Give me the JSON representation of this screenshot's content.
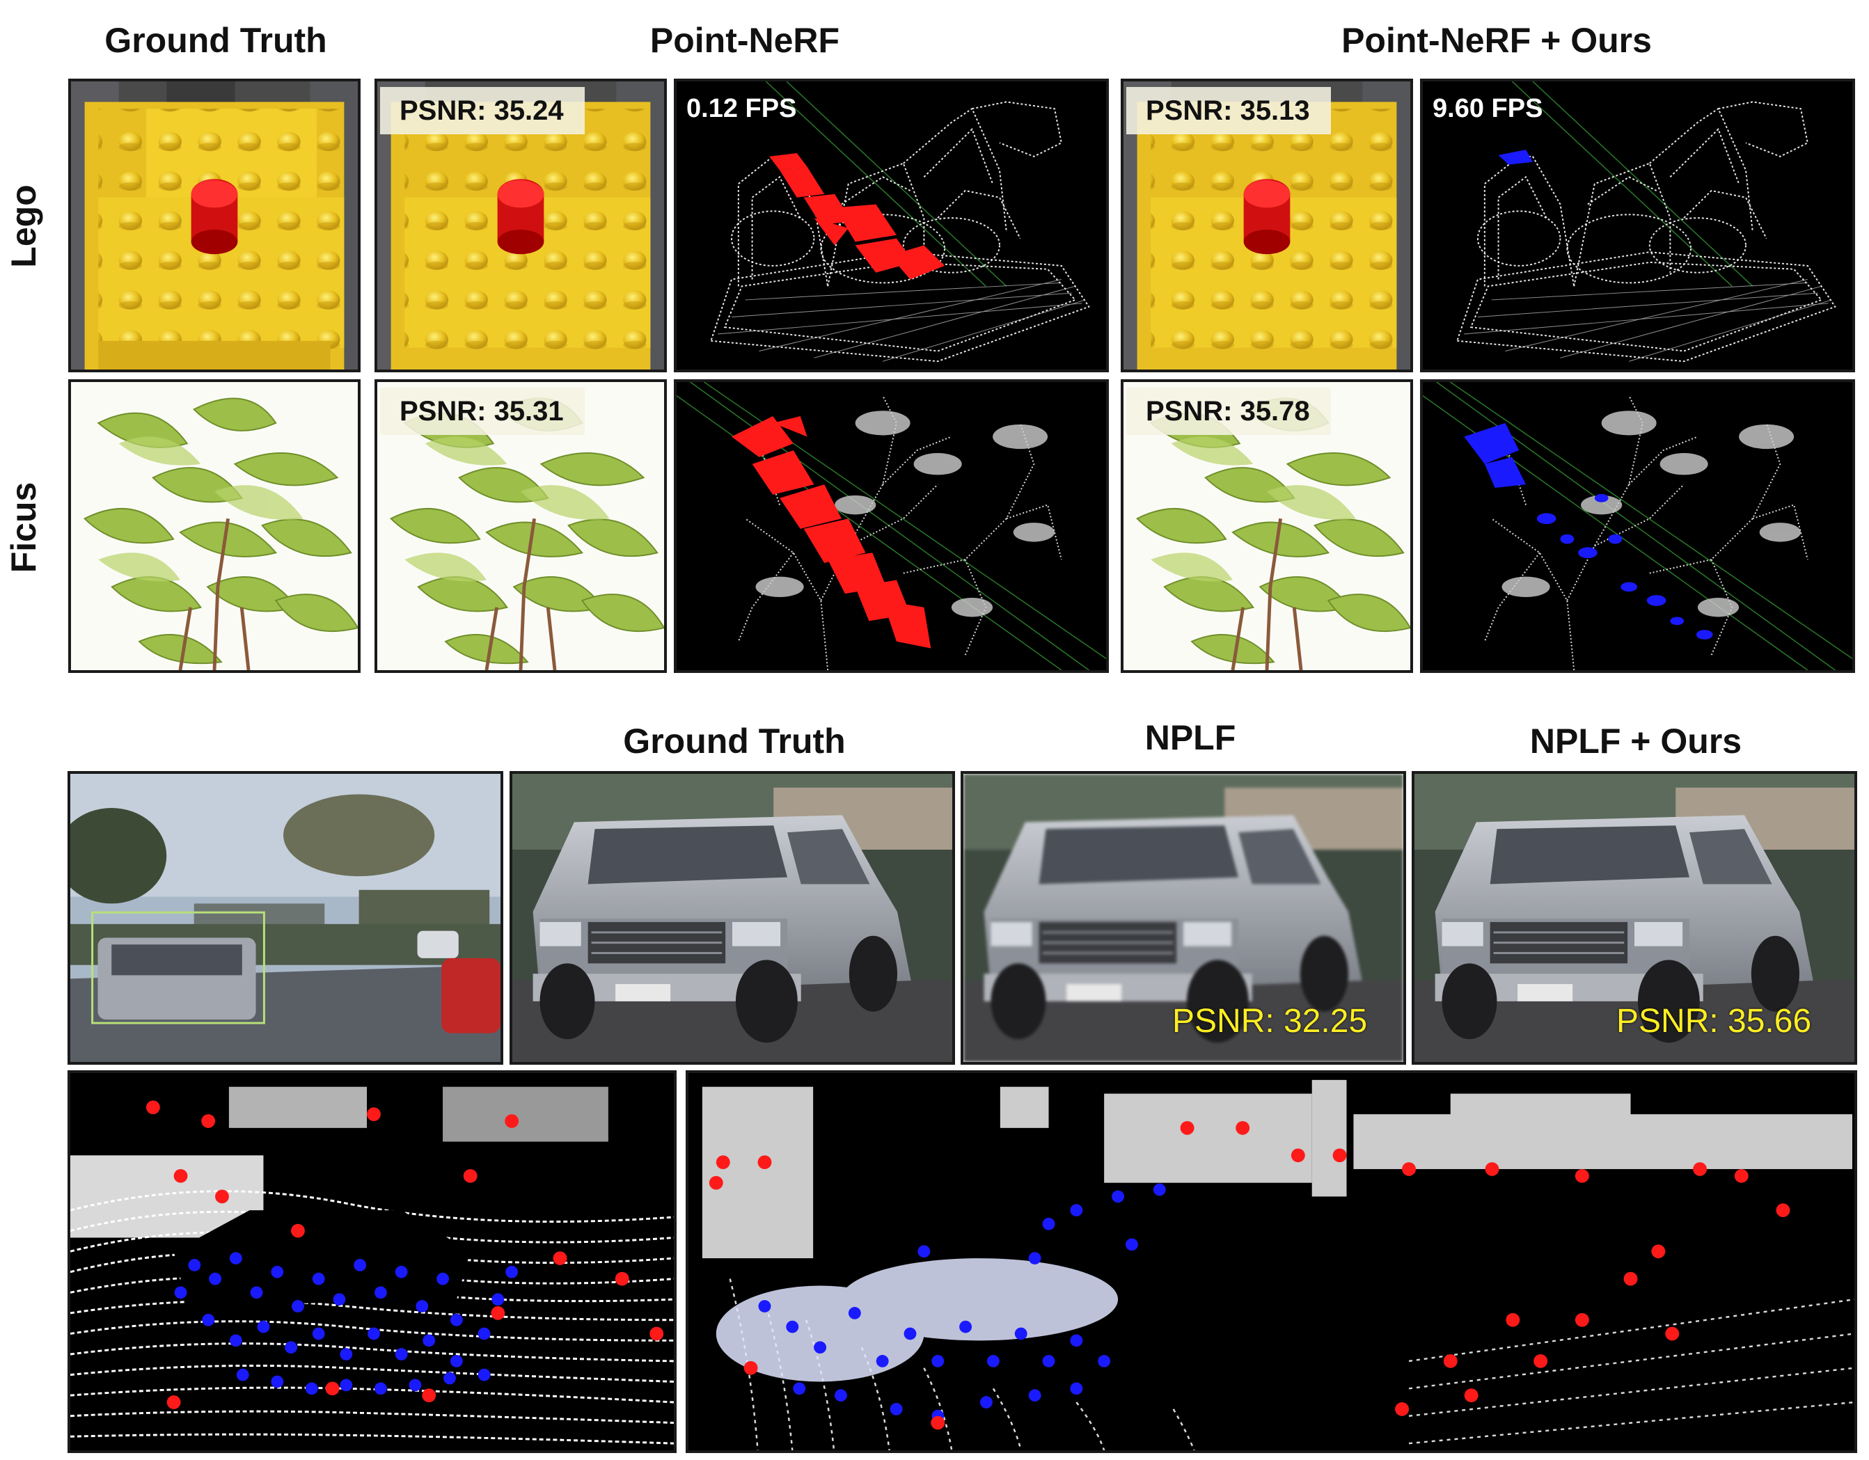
{
  "top_section": {
    "headers": {
      "ground_truth": "Ground Truth",
      "baseline": "Point-NeRF",
      "ours": "Point-NeRF + Ours"
    },
    "rows": [
      {
        "label": "Lego",
        "baseline_psnr": "PSNR: 35.24",
        "baseline_fps": "0.12 FPS",
        "ours_psnr": "PSNR: 35.13",
        "ours_fps": "9.60 FPS"
      },
      {
        "label": "Ficus",
        "baseline_psnr": "PSNR: 35.31",
        "ours_psnr": "PSNR: 35.78"
      }
    ]
  },
  "bottom_section": {
    "headers": {
      "ground_truth": "Ground Truth",
      "baseline": "NPLF",
      "ours": "NPLF + Ours"
    },
    "baseline_psnr": "PSNR: 32.25",
    "ours_psnr": "PSNR: 35.66"
  },
  "colors": {
    "highlight_red": "#ff1a1a",
    "highlight_blue": "#1a1aff",
    "psnr_yellow": "#ffee22",
    "lego_yellow": "#f2cf2a",
    "leaf_green": "#9dbf4a"
  }
}
